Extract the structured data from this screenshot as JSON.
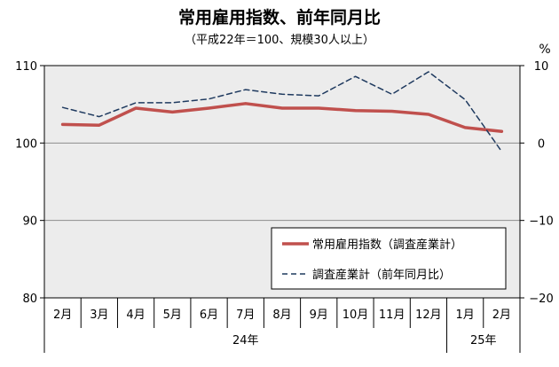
{
  "chart_data": {
    "type": "line",
    "title": "常用雇用指数、前年同月比",
    "subtitle": "（平成22年＝100、規模30人以上）",
    "right_axis_unit": "%",
    "categories": [
      "2月",
      "3月",
      "4月",
      "5月",
      "6月",
      "7月",
      "8月",
      "9月",
      "10月",
      "11月",
      "12月",
      "1月",
      "2月"
    ],
    "years": [
      {
        "label": "24年",
        "span": 11
      },
      {
        "label": "25年",
        "span": 2
      }
    ],
    "left_axis": {
      "ylim": [
        80,
        110
      ],
      "ticks": [
        80,
        90,
        100,
        110
      ]
    },
    "right_axis": {
      "ylim": [
        -20,
        10
      ],
      "ticks": [
        -20,
        -10,
        0,
        10
      ],
      "tick_labels": [
        "−20",
        "−10",
        "0",
        "10"
      ]
    },
    "grid": true,
    "legend_position": "bottom-right",
    "series": [
      {
        "name": "常用雇用指数（調査産業計）",
        "axis": "left",
        "color": "#c0504d",
        "style": "solid",
        "values": [
          102.4,
          102.3,
          104.5,
          104.0,
          104.5,
          105.1,
          104.5,
          104.5,
          104.2,
          104.1,
          103.7,
          102.0,
          101.5
        ]
      },
      {
        "name": "調査産業計（前年同月比）",
        "axis": "right",
        "color": "#1f3a5f",
        "style": "dashed",
        "values": [
          4.6,
          3.4,
          5.2,
          5.2,
          5.7,
          6.9,
          6.3,
          6.1,
          8.6,
          6.3,
          9.2,
          5.6,
          -1.1
        ]
      }
    ]
  }
}
